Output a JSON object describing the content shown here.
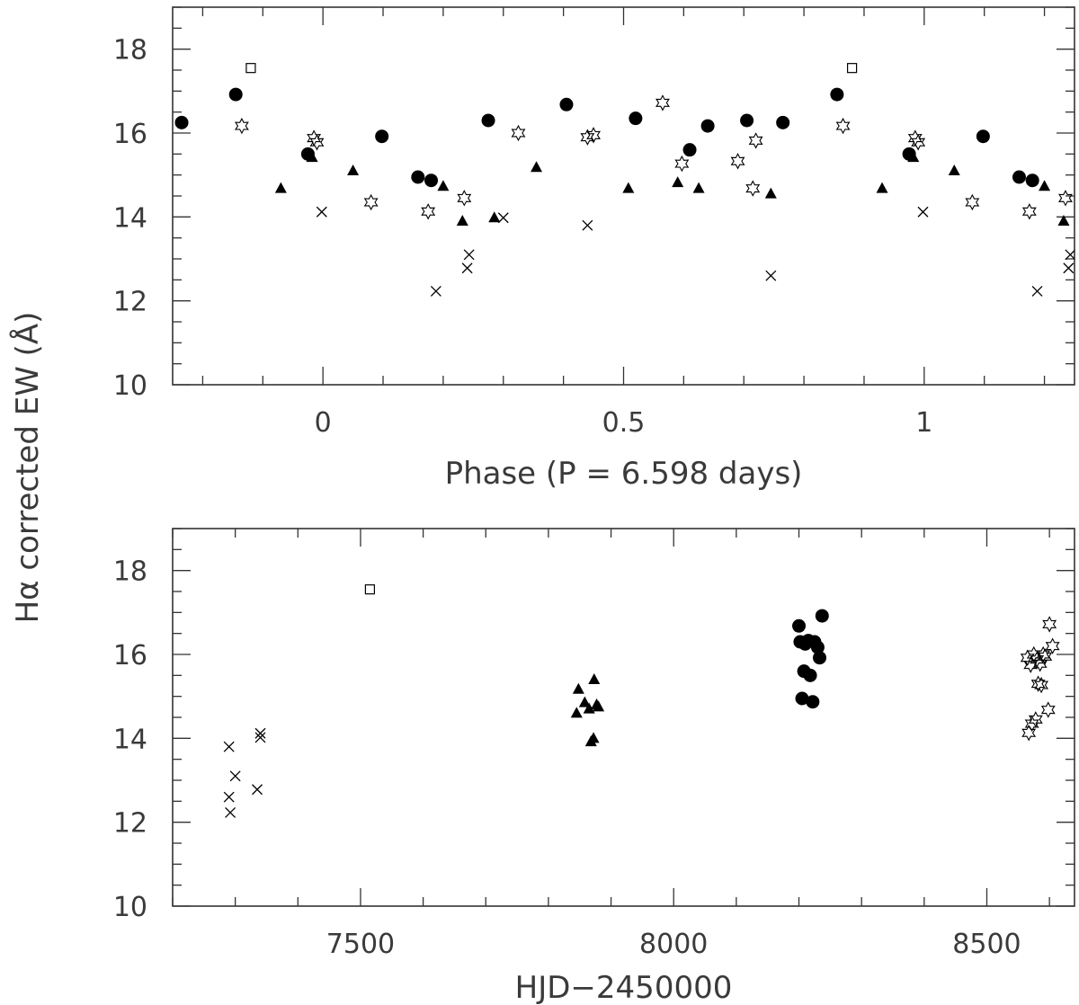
{
  "ylabel_shared": "Hα corrected EW (Å)",
  "colors": {
    "ink": "#000000",
    "frame": "#333333",
    "text": "#3a3a3a"
  },
  "chart_data": [
    {
      "type": "scatter",
      "xlabel": "Phase (P = 6.598 days)",
      "ylabel": "Hα corrected EW (Å)",
      "xlim": [
        -0.25,
        1.25
      ],
      "ylim": [
        10,
        19
      ],
      "x_ticks": [
        0,
        0.5,
        1
      ],
      "x_tick_labels": [
        "0",
        "0.5",
        "1"
      ],
      "y_ticks": [
        10,
        12,
        14,
        16,
        18
      ],
      "y_tick_labels": [
        "10",
        "12",
        "14",
        "16",
        "18"
      ],
      "grid": false,
      "series": [
        {
          "marker": "circle",
          "points": [
            [
              -0.235,
              16.25
            ],
            [
              -0.145,
              16.92
            ],
            [
              -0.025,
              15.5
            ],
            [
              0.098,
              15.92
            ],
            [
              0.158,
              14.95
            ],
            [
              0.18,
              14.87
            ],
            [
              0.275,
              16.3
            ],
            [
              0.405,
              16.68
            ],
            [
              0.52,
              16.35
            ],
            [
              0.61,
              15.6
            ],
            [
              0.64,
              16.17
            ],
            [
              0.705,
              16.3
            ],
            [
              0.765,
              16.25
            ],
            [
              0.855,
              16.92
            ],
            [
              0.975,
              15.5
            ],
            [
              1.098,
              15.92
            ],
            [
              1.158,
              14.95
            ],
            [
              1.18,
              14.87
            ]
          ]
        },
        {
          "marker": "triangle",
          "points": [
            [
              -0.07,
              14.68
            ],
            [
              -0.018,
              15.42
            ],
            [
              0.05,
              15.1
            ],
            [
              0.2,
              14.73
            ],
            [
              0.232,
              13.9
            ],
            [
              0.285,
              13.98
            ],
            [
              0.355,
              15.18
            ],
            [
              0.508,
              14.68
            ],
            [
              0.59,
              14.82
            ],
            [
              0.625,
              14.68
            ],
            [
              0.745,
              14.55
            ],
            [
              0.93,
              14.68
            ],
            [
              0.982,
              15.42
            ],
            [
              1.05,
              15.1
            ],
            [
              1.2,
              14.73
            ],
            [
              1.232,
              13.9
            ]
          ]
        },
        {
          "marker": "star",
          "points": [
            [
              -0.135,
              16.17
            ],
            [
              -0.015,
              15.88
            ],
            [
              -0.01,
              15.78
            ],
            [
              0.08,
              14.35
            ],
            [
              0.175,
              14.13
            ],
            [
              0.235,
              14.45
            ],
            [
              0.325,
              16.0
            ],
            [
              0.44,
              15.9
            ],
            [
              0.45,
              15.95
            ],
            [
              0.565,
              16.72
            ],
            [
              0.597,
              15.27
            ],
            [
              0.69,
              15.33
            ],
            [
              0.715,
              14.68
            ],
            [
              0.72,
              15.82
            ],
            [
              0.865,
              16.17
            ],
            [
              0.985,
              15.88
            ],
            [
              0.99,
              15.78
            ],
            [
              1.08,
              14.35
            ],
            [
              1.175,
              14.13
            ],
            [
              1.235,
              14.45
            ]
          ]
        },
        {
          "marker": "cross",
          "points": [
            [
              -0.002,
              14.12
            ],
            [
              0.188,
              12.23
            ],
            [
              0.24,
              12.78
            ],
            [
              0.243,
              13.1
            ],
            [
              0.3,
              13.98
            ],
            [
              0.44,
              13.8
            ],
            [
              0.745,
              12.6
            ],
            [
              0.998,
              14.12
            ],
            [
              1.188,
              12.23
            ],
            [
              1.24,
              12.78
            ],
            [
              1.243,
              13.1
            ]
          ]
        },
        {
          "marker": "square",
          "points": [
            [
              -0.12,
              17.55
            ],
            [
              0.88,
              17.55
            ]
          ]
        }
      ]
    },
    {
      "type": "scatter",
      "xlabel": "HJD−2450000",
      "ylabel": "Hα corrected EW (Å)",
      "xlim": [
        7200,
        8640
      ],
      "ylim": [
        10,
        19
      ],
      "x_ticks": [
        7500,
        8000,
        8500
      ],
      "x_tick_labels": [
        "7500",
        "8000",
        "8500"
      ],
      "y_ticks": [
        10,
        12,
        14,
        16,
        18
      ],
      "y_tick_labels": [
        "10",
        "12",
        "14",
        "16",
        "18"
      ],
      "grid": false,
      "series": [
        {
          "marker": "cross",
          "points": [
            [
              7290,
              13.8
            ],
            [
              7290,
              12.6
            ],
            [
              7292,
              12.23
            ],
            [
              7300,
              13.1
            ],
            [
              7335,
              12.78
            ],
            [
              7340,
              14.12
            ],
            [
              7340,
              14.02
            ]
          ]
        },
        {
          "marker": "square",
          "points": [
            [
              7515,
              17.55
            ]
          ]
        },
        {
          "marker": "triangle",
          "points": [
            [
              7845,
              14.6
            ],
            [
              7848,
              15.17
            ],
            [
              7858,
              14.85
            ],
            [
              7865,
              14.7
            ],
            [
              7868,
              13.92
            ],
            [
              7872,
              14.0
            ],
            [
              7873,
              15.4
            ],
            [
              7877,
              14.8
            ],
            [
              7880,
              14.75
            ]
          ]
        },
        {
          "marker": "circle",
          "points": [
            [
              8200,
              16.68
            ],
            [
              8202,
              16.3
            ],
            [
              8205,
              14.95
            ],
            [
              8208,
              15.6
            ],
            [
              8210,
              16.25
            ],
            [
              8215,
              16.33
            ],
            [
              8218,
              15.5
            ],
            [
              8222,
              14.87
            ],
            [
              8225,
              16.3
            ],
            [
              8230,
              16.17
            ],
            [
              8233,
              15.92
            ],
            [
              8237,
              16.92
            ]
          ]
        },
        {
          "marker": "star",
          "points": [
            [
              8565,
              15.92
            ],
            [
              8567,
              14.13
            ],
            [
              8570,
              15.75
            ],
            [
              8572,
              14.35
            ],
            [
              8575,
              16.0
            ],
            [
              8578,
              14.45
            ],
            [
              8580,
              15.88
            ],
            [
              8582,
              15.3
            ],
            [
              8585,
              15.78
            ],
            [
              8587,
              15.27
            ],
            [
              8590,
              16.0
            ],
            [
              8593,
              15.95
            ],
            [
              8598,
              14.68
            ],
            [
              8600,
              16.72
            ],
            [
              8605,
              16.2
            ]
          ]
        }
      ]
    }
  ]
}
